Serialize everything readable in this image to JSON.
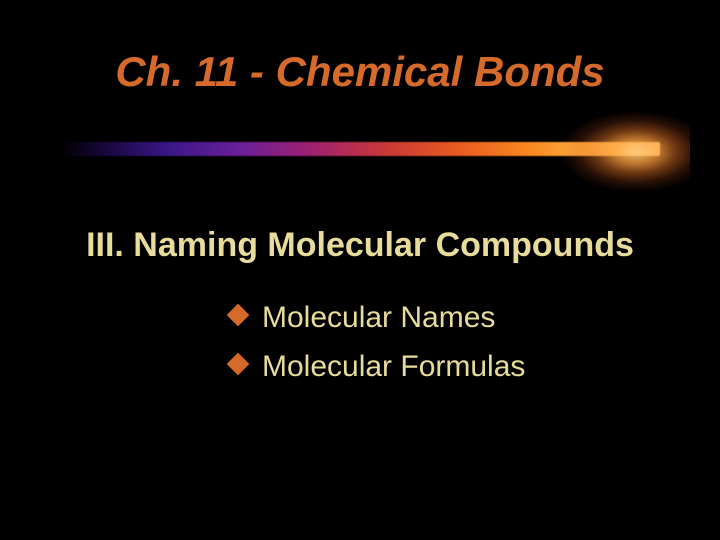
{
  "slide": {
    "background_color": "#000000",
    "title": {
      "text": "Ch. 11  - Chemical Bonds",
      "color": "#d66a2a",
      "font_size_pt": 32,
      "font_weight": "bold",
      "font_style": "italic"
    },
    "divider": {
      "gradient_colors": [
        "#000000",
        "#1a0840",
        "#3a1788",
        "#6a2099",
        "#a02070",
        "#c83838",
        "#e85a20",
        "#f88820",
        "#ffb040",
        "#ffd880",
        "#ffe8b0"
      ],
      "glow_color": "#ffb860"
    },
    "subtitle": {
      "text": "III. Naming Molecular Compounds",
      "color": "#e8dc9a",
      "font_size_pt": 26,
      "font_weight": "bold"
    },
    "bullets": {
      "items": [
        "Molecular Names",
        "Molecular Formulas"
      ],
      "text_color": "#e8dc9a",
      "bullet_color": "#d66a2a",
      "bullet_shape": "diamond",
      "font_size_pt": 23
    }
  }
}
